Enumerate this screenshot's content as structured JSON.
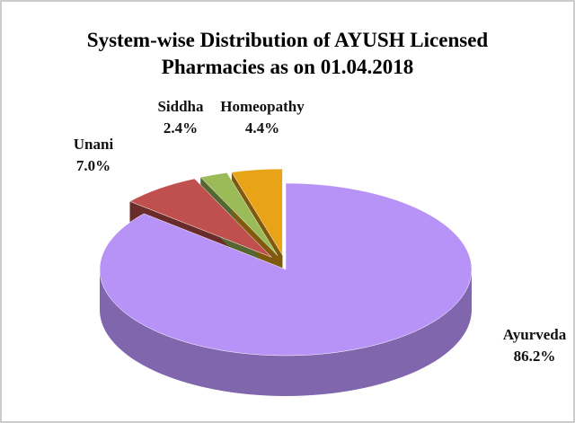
{
  "chart_data": {
    "type": "pie3d",
    "title": "System-wise Distribution of AYUSH Licensed Pharmacies as on 01.04.2018",
    "categories": [
      "Ayurveda",
      "Unani",
      "Siddha",
      "Homeopathy"
    ],
    "values": [
      86.2,
      7.0,
      2.4,
      4.4
    ],
    "value_labels": [
      "86.2%",
      "7.0%",
      "2.4%",
      "4.4%"
    ],
    "colors": [
      "#b893f7",
      "#c0504d",
      "#9bbb59",
      "#e8a317"
    ]
  }
}
